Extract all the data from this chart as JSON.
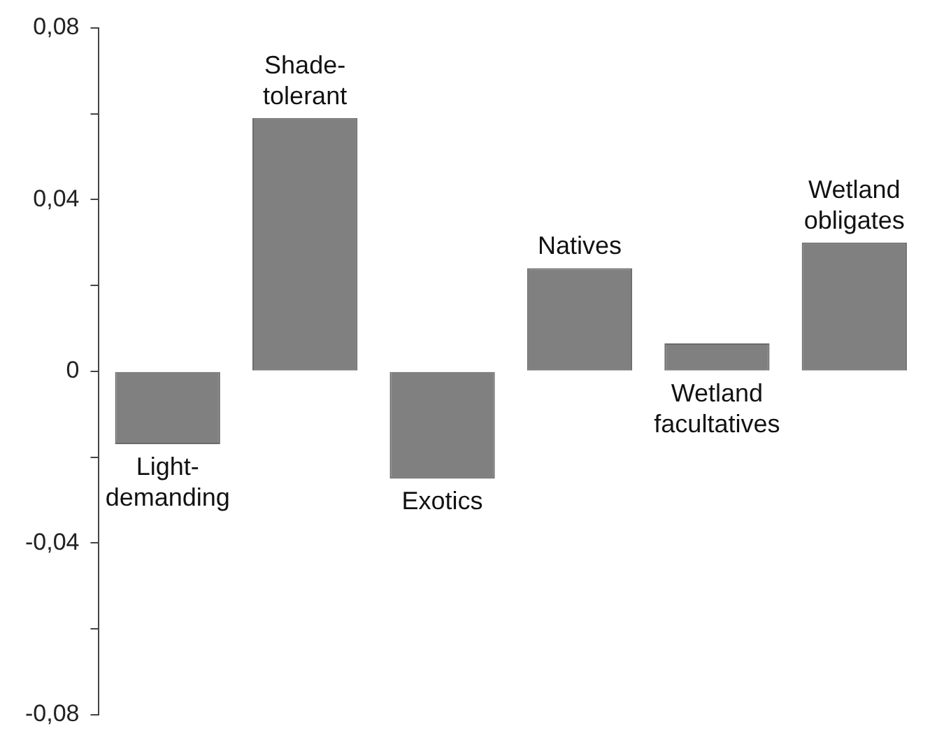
{
  "chart_data": {
    "type": "bar",
    "categories": [
      "Light-demanding",
      "Shade-tolerant",
      "Exotics",
      "Natives",
      "Wetland facultatives",
      "Wetland obligates"
    ],
    "values": [
      -0.017,
      0.059,
      -0.025,
      0.024,
      0.0065,
      0.03
    ],
    "color": "#808080",
    "legend": false,
    "grid": false,
    "ylim": [
      -0.08,
      0.08
    ],
    "yticks": [
      {
        "value": -0.08,
        "label": "-0,08"
      },
      {
        "value": -0.06,
        "label": null
      },
      {
        "value": -0.04,
        "label": "-0,04"
      },
      {
        "value": -0.02,
        "label": null
      },
      {
        "value": 0,
        "label": "0"
      },
      {
        "value": 0.02,
        "label": null
      },
      {
        "value": 0.04,
        "label": "0,04"
      },
      {
        "value": 0.06,
        "label": null
      },
      {
        "value": 0.08,
        "label": "0,08"
      }
    ]
  }
}
